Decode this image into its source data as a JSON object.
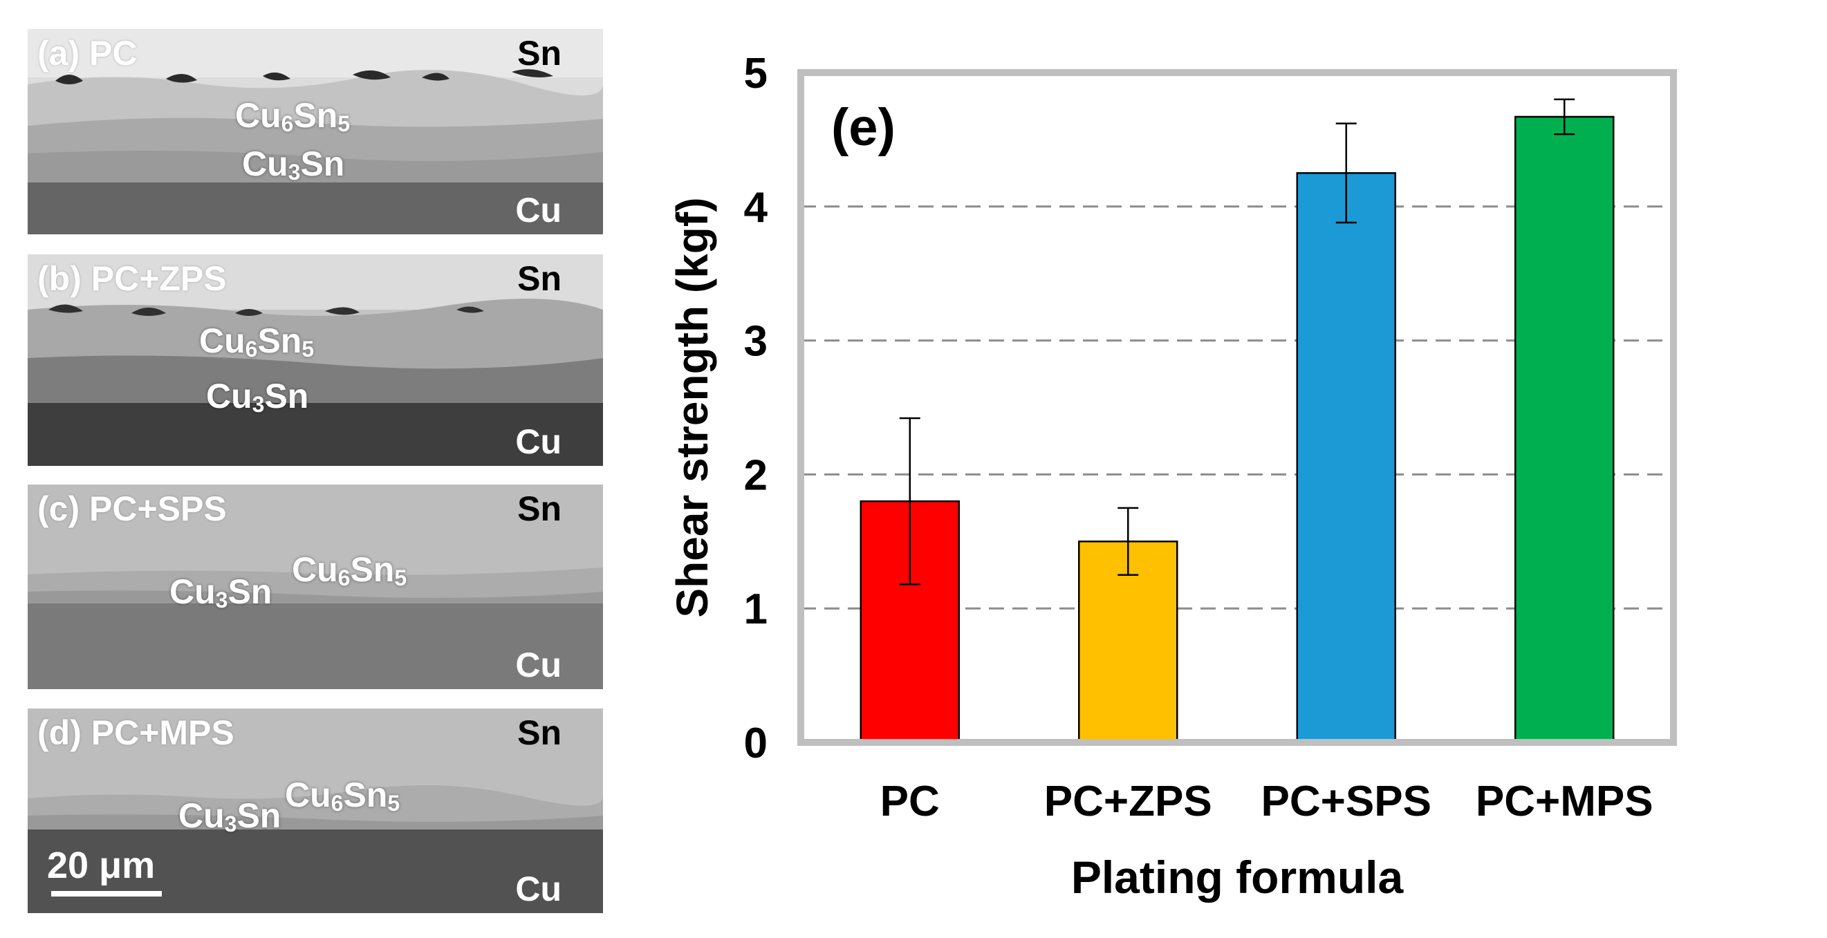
{
  "panels": [
    {
      "id": "(a) PC",
      "top_phase": "Sn",
      "imc1": "Cu",
      "imc1_sub": "6",
      "imc1_b": "Sn",
      "imc1_sub2": "5",
      "imc2": "Cu",
      "imc2_sub": "3",
      "imc2_b": "Sn",
      "bottom_phase": "Cu"
    },
    {
      "id": "(b) PC+ZPS",
      "top_phase": "Sn",
      "imc1": "Cu",
      "imc1_sub": "6",
      "imc1_b": "Sn",
      "imc1_sub2": "5",
      "imc2": "Cu",
      "imc2_sub": "3",
      "imc2_b": "Sn",
      "bottom_phase": "Cu"
    },
    {
      "id": "(c) PC+SPS",
      "top_phase": "Sn",
      "imc1": "Cu",
      "imc1_sub": "6",
      "imc1_b": "Sn",
      "imc1_sub2": "5",
      "imc2": "Cu",
      "imc2_sub": "3",
      "imc2_b": "Sn",
      "bottom_phase": "Cu"
    },
    {
      "id": "(d) PC+MPS",
      "top_phase": "Sn",
      "imc1": "Cu",
      "imc1_sub": "6",
      "imc1_b": "Sn",
      "imc1_sub2": "5",
      "imc2": "Cu",
      "imc2_sub": "3",
      "imc2_b": "Sn",
      "bottom_phase": "Cu"
    }
  ],
  "scale_bar": {
    "label": "20 μm"
  },
  "colors": {
    "PC": "#ff0000",
    "PC+ZPS": "#ffc000",
    "PC+SPS": "#1b9ad6",
    "PC+MPS": "#00b050",
    "frame": "#bfbfbf",
    "grid": "#8c8c8c"
  },
  "chart_data": {
    "type": "bar",
    "panel_label": "(e)",
    "categories": [
      "PC",
      "PC+ZPS",
      "PC+SPS",
      "PC+MPS"
    ],
    "values": [
      1.8,
      1.5,
      4.25,
      4.67
    ],
    "error": [
      0.62,
      0.25,
      0.37,
      0.13
    ],
    "xlabel": "Plating formula",
    "ylabel": "Shear strength (kgf)",
    "ylim": [
      0,
      5
    ],
    "yticks": [
      0,
      1,
      2,
      3,
      4,
      5
    ],
    "grid": "horizontal dashed"
  }
}
